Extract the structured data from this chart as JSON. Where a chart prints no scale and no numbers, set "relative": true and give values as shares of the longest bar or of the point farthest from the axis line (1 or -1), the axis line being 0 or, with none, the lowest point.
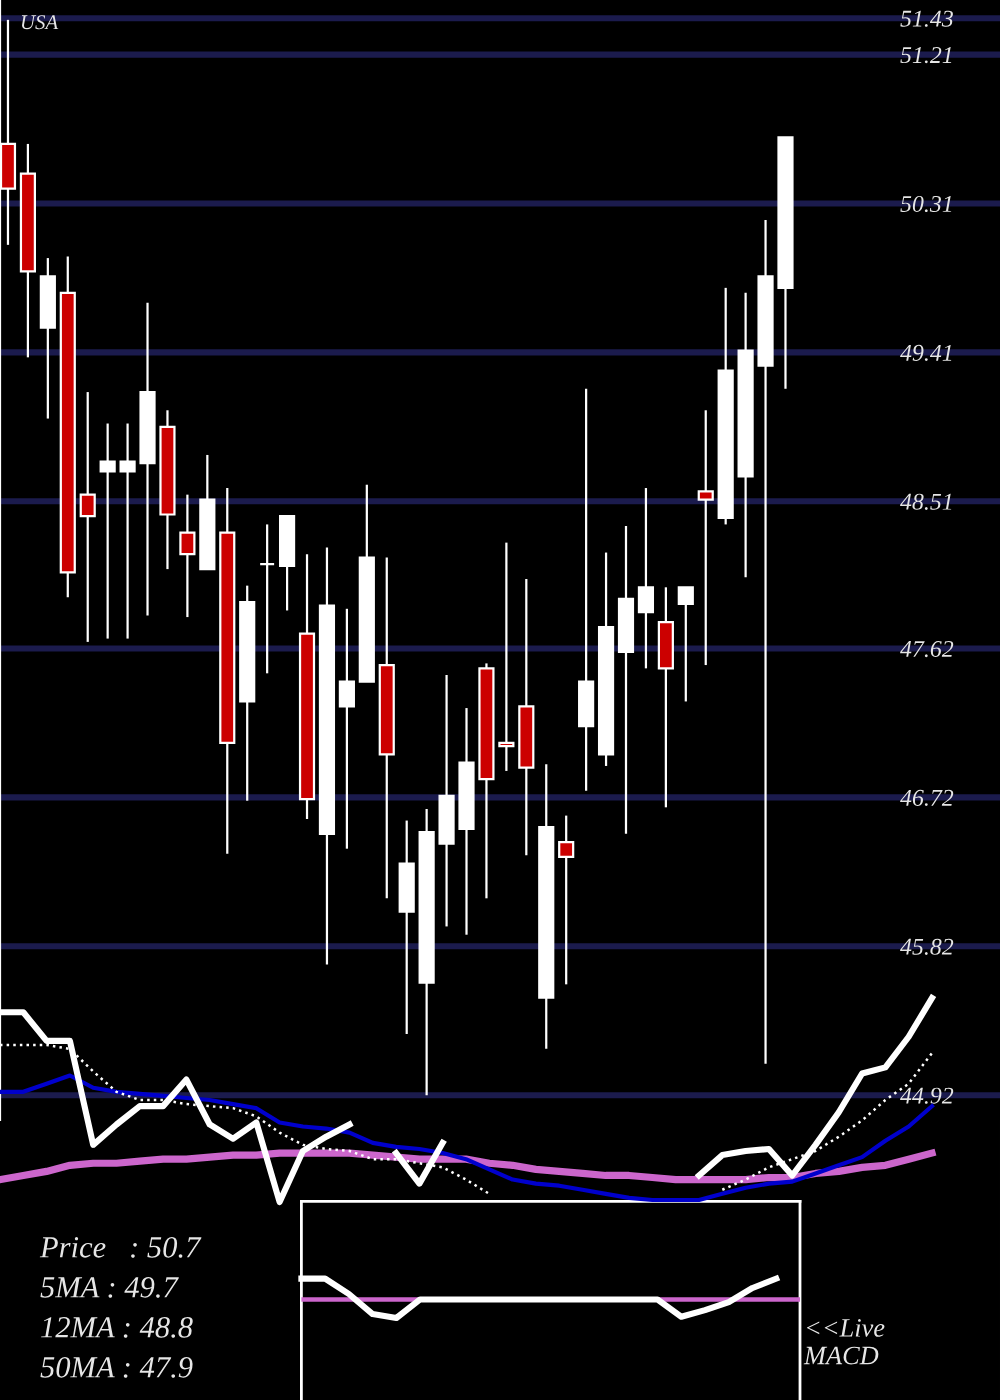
{
  "chart_data": [
    {
      "type": "candlestick",
      "categories": [
        null,
        null,
        null,
        null,
        null,
        null,
        null,
        null,
        null,
        null,
        null,
        null,
        null,
        null,
        null,
        null,
        null,
        null,
        null,
        null,
        null,
        null,
        null,
        null,
        null,
        null,
        null,
        null,
        null,
        null,
        null,
        null,
        null,
        null,
        null,
        null,
        null,
        null,
        null,
        null
      ],
      "ohlc": [
        [
          50.67,
          51.42,
          50.06,
          50.4
        ],
        [
          50.49,
          50.67,
          49.38,
          49.9
        ],
        [
          49.56,
          49.98,
          49.01,
          49.87
        ],
        [
          49.77,
          49.99,
          47.93,
          48.08
        ],
        [
          48.55,
          49.17,
          47.66,
          48.42
        ],
        [
          48.69,
          48.98,
          47.68,
          48.75
        ],
        [
          48.69,
          48.98,
          47.68,
          48.75
        ],
        [
          48.74,
          49.71,
          47.82,
          49.17
        ],
        [
          48.96,
          49.06,
          48.1,
          48.43
        ],
        [
          48.32,
          48.55,
          47.81,
          48.19
        ],
        [
          48.1,
          48.79,
          48.1,
          48.52
        ],
        [
          48.32,
          48.59,
          46.38,
          47.05
        ],
        [
          47.3,
          48.0,
          46.7,
          47.9
        ],
        [
          48.13,
          48.37,
          47.47,
          48.13
        ],
        [
          48.12,
          48.42,
          47.85,
          48.42
        ],
        [
          47.71,
          48.19,
          46.59,
          46.71
        ],
        [
          46.5,
          48.23,
          45.71,
          47.88
        ],
        [
          47.27,
          47.86,
          46.41,
          47.42
        ],
        [
          47.42,
          48.61,
          47.42,
          48.17
        ],
        [
          47.52,
          48.17,
          46.11,
          46.98
        ],
        [
          46.03,
          46.58,
          45.29,
          46.32
        ],
        [
          45.6,
          46.65,
          44.92,
          46.51
        ],
        [
          46.44,
          47.46,
          45.94,
          46.73
        ],
        [
          46.53,
          47.26,
          45.89,
          46.93
        ],
        [
          47.5,
          47.53,
          46.11,
          46.83
        ],
        [
          47.05,
          48.26,
          46.88,
          47.03
        ],
        [
          47.27,
          48.04,
          46.37,
          46.9
        ],
        [
          45.51,
          46.92,
          45.2,
          46.54
        ],
        [
          46.45,
          46.61,
          45.59,
          46.36
        ],
        [
          47.15,
          49.19,
          46.76,
          47.42
        ],
        [
          46.98,
          48.2,
          46.91,
          47.75
        ],
        [
          47.6,
          48.36,
          46.5,
          47.92
        ],
        [
          47.84,
          48.59,
          47.5,
          47.99
        ],
        [
          47.78,
          47.99,
          46.66,
          47.5
        ],
        [
          47.89,
          47.99,
          47.3,
          47.99
        ],
        [
          48.57,
          49.06,
          47.52,
          48.52
        ],
        [
          48.41,
          49.8,
          48.37,
          49.3
        ],
        [
          48.66,
          49.77,
          48.05,
          49.42
        ],
        [
          49.33,
          50.21,
          45.11,
          49.87
        ],
        [
          49.8,
          50.71,
          49.19,
          50.71
        ]
      ],
      "colors": [
        "#cc0000",
        "#cc0000",
        "#ffffff",
        "#cc0000",
        "#cc0000",
        "#ffffff",
        "#ffffff",
        "#ffffff",
        "#cc0000",
        "#cc0000",
        "#ffffff",
        "#cc0000",
        "#ffffff",
        "#ffffff",
        "#ffffff",
        "#cc0000",
        "#ffffff",
        "#ffffff",
        "#ffffff",
        "#cc0000",
        "#ffffff",
        "#ffffff",
        "#ffffff",
        "#ffffff",
        "#cc0000",
        "#cc0000",
        "#cc0000",
        "#ffffff",
        "#cc0000",
        "#ffffff",
        "#ffffff",
        "#ffffff",
        "#ffffff",
        "#cc0000",
        "#ffffff",
        "#cc0000",
        "#ffffff",
        "#ffffff",
        "#ffffff",
        "#ffffff"
      ],
      "ylim": [
        44.77,
        51.54
      ],
      "yticks": [
        51.43,
        51.21,
        50.31,
        49.41,
        48.51,
        47.62,
        46.72,
        45.82,
        44.92
      ],
      "grid": "y",
      "tick_labels": "y",
      "annotations": [
        "USA"
      ]
    },
    {
      "type": "line",
      "relative": true,
      "tick_labels": false,
      "categories": [
        null,
        null,
        null,
        null,
        null,
        null,
        null,
        null,
        null,
        null,
        null,
        null,
        null,
        null,
        null,
        null,
        null,
        null,
        null,
        null,
        null,
        null,
        null,
        null,
        null,
        null,
        null,
        null,
        null,
        null,
        null,
        null,
        null,
        null,
        null,
        null,
        null,
        null,
        null,
        null,
        null
      ],
      "series": [
        {
          "color": "#cc66cc",
          "values": [
            0.11,
            0.13,
            0.15,
            0.18,
            0.19,
            0.19,
            0.2,
            0.21,
            0.21,
            0.22,
            0.23,
            0.23,
            0.24,
            0.24,
            0.24,
            0.24,
            0.23,
            0.22,
            0.21,
            0.21,
            0.21,
            0.19,
            0.18,
            0.16,
            0.15,
            0.14,
            0.13,
            0.13,
            0.12,
            0.11,
            0.11,
            0.11,
            0.11,
            0.12,
            0.12,
            0.14,
            0.15,
            0.17,
            0.18,
            0.21,
            0.24
          ]
        },
        {
          "color": "#0000cc",
          "values": [
            0.54,
            0.54,
            0.58,
            0.62,
            0.56,
            0.54,
            0.53,
            0.52,
            0.51,
            0.5,
            0.48,
            0.46,
            0.39,
            0.37,
            0.36,
            0.34,
            0.29,
            0.27,
            0.26,
            0.24,
            0.21,
            0.16,
            0.11,
            0.09,
            0.08,
            0.06,
            0.04,
            0.02,
            0.01,
            0.01,
            0.01,
            0.04,
            0.07,
            0.09,
            0.1,
            0.14,
            0.18,
            0.22,
            0.3,
            0.37,
            0.47
          ]
        },
        {
          "color": "#ffffff",
          "line_style": "dotted",
          "values": [
            0.77,
            0.77,
            0.77,
            0.75,
            0.64,
            0.54,
            0.5,
            0.5,
            0.48,
            0.47,
            0.46,
            0.42,
            0.34,
            0.28,
            0.26,
            0.25,
            0.21,
            0.21,
            0.19,
            0.17,
            0.11,
            0.04,
            null,
            null,
            null,
            null,
            null,
            null,
            null,
            null,
            null,
            0.06,
            0.11,
            0.17,
            0.21,
            0.25,
            0.32,
            0.4,
            0.5,
            0.58,
            0.73
          ]
        },
        {
          "color": "#ffffff",
          "values": [
            0.93,
            0.93,
            0.79,
            0.79,
            0.28,
            0.38,
            0.47,
            0.47,
            0.6,
            0.38,
            0.31,
            0.39,
            0,
            0.25,
            0.32,
            0.38,
            null,
            0.24,
            0.09,
            0.29,
            null,
            null,
            null,
            null,
            null,
            null,
            null,
            null,
            null,
            null,
            0.13,
            0.23,
            0.25,
            0.26,
            0.13,
            0.28,
            0.44,
            0.63,
            0.66,
            0.81,
            1
          ]
        }
      ],
      "annotations": [
        "Price   : 50.7",
        "5MA : 49.7",
        "12MA : 48.8",
        "50MA : 47.9"
      ]
    },
    {
      "type": "line",
      "relative": true,
      "tick_labels": false,
      "categories": [
        null,
        null,
        null,
        null,
        null,
        null,
        null,
        null,
        null,
        null,
        null,
        null,
        null,
        null,
        null,
        null,
        null,
        null,
        null,
        null,
        null,
        null
      ],
      "series": [
        {
          "color": "#ffffff",
          "values": [
            1.0,
            1.0,
            0.26,
            -0.7,
            -0.89,
            0,
            0,
            0,
            0,
            0,
            0,
            0,
            0,
            0,
            0,
            0,
            -0.83,
            -0.51,
            -0.13,
            0.55,
            1.0,
            null
          ]
        }
      ],
      "ref_lines": [
        {
          "axis": "y",
          "value": 0,
          "color": "#cc66cc"
        }
      ],
      "annotations": [
        "<<Live\nMACD"
      ]
    }
  ]
}
